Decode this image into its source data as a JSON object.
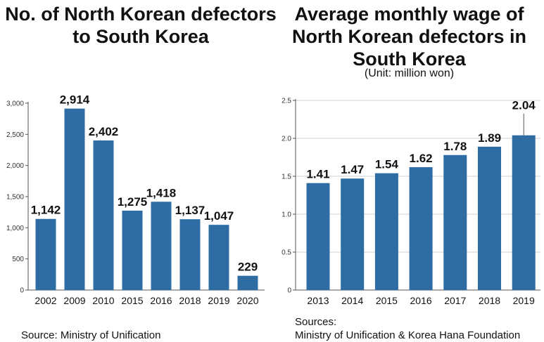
{
  "colors": {
    "bar": "#2e6da4",
    "axis": "#555555",
    "grid": "#cfcfcf"
  },
  "left": {
    "title": "No. of North Korean defectors to South Korea",
    "source": "Source: Ministry of Unification"
  },
  "right": {
    "title": "Average monthly wage of North Korean defectors in South Korea",
    "unit": "(Unit: million won)",
    "source_line1": "Sources:",
    "source_line2": "Ministry of Unification & Korea Hana Foundation"
  },
  "chart_data": [
    {
      "type": "bar",
      "title": "No. of North Korean defectors to South Korea",
      "categories": [
        "2002",
        "2009",
        "2010",
        "2015",
        "2016",
        "2018",
        "2019",
        "2020"
      ],
      "values": [
        1142,
        2914,
        2402,
        1275,
        1418,
        1137,
        1047,
        229
      ],
      "value_labels": [
        "1,142",
        "2,914",
        "2,402",
        "1,275",
        "1,418",
        "1,137",
        "1,047",
        "229"
      ],
      "yticks": [
        0,
        500,
        1000,
        1500,
        2000,
        2500,
        3000
      ],
      "ytick_labels": [
        "0",
        "500",
        "1,000",
        "1,500",
        "2,000",
        "2,500",
        "3,000"
      ],
      "ylim": [
        0,
        3000
      ],
      "grid": false,
      "xlabel": "",
      "ylabel": ""
    },
    {
      "type": "bar",
      "title": "Average monthly wage of North Korean defectors in South Korea",
      "categories": [
        "2013",
        "2014",
        "2015",
        "2016",
        "2017",
        "2018",
        "2019"
      ],
      "values": [
        1.41,
        1.47,
        1.54,
        1.62,
        1.78,
        1.89,
        2.04
      ],
      "value_labels": [
        "1.41",
        "1.47",
        "1.54",
        "1.62",
        "1.78",
        "1.89",
        "2.04"
      ],
      "yticks": [
        0,
        0.5,
        1.0,
        1.5,
        2.0,
        2.5
      ],
      "ytick_labels": [
        "0",
        "0.5",
        "1.0",
        "1.5",
        "2.0",
        "2.5"
      ],
      "ylim": [
        0,
        2.5
      ],
      "grid": true,
      "xlabel": "",
      "ylabel": ""
    }
  ]
}
